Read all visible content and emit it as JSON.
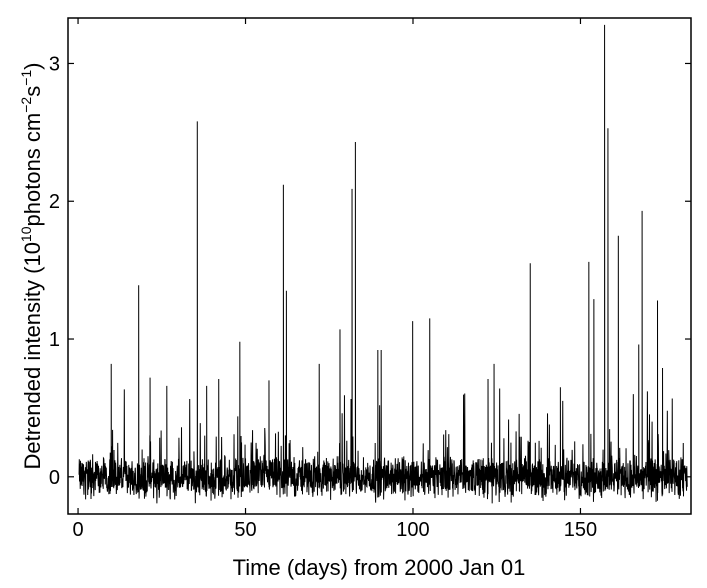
{
  "chart_data": {
    "type": "line",
    "title": "",
    "xlabel": "Time (days) from 2000 Jan 01",
    "ylabel": {
      "main": "Detrended intensity (10",
      "exp1": "10",
      "unit": "photons cm",
      "exp2": "−2",
      "s": "s",
      "exp3": "−1",
      "close": ")"
    },
    "xlim": [
      -3,
      183
    ],
    "ylim": [
      -0.27,
      3.33
    ],
    "xticks": [
      0,
      50,
      100,
      150
    ],
    "yticks": [
      0,
      1,
      2,
      3
    ],
    "grid": false,
    "legend": "none",
    "line_color": "#000000",
    "series": [
      {
        "name": "",
        "note": "noisy baseline near zero (about -0.2 to 0.2) with occasional flare spikes",
        "spikes": [
          {
            "x": 9.9,
            "y": 0.82
          },
          {
            "x": 18.1,
            "y": 1.39
          },
          {
            "x": 21.5,
            "y": 0.72
          },
          {
            "x": 26.5,
            "y": 0.66
          },
          {
            "x": 35.6,
            "y": 2.58
          },
          {
            "x": 38.4,
            "y": 0.66
          },
          {
            "x": 42.0,
            "y": 0.71
          },
          {
            "x": 48.3,
            "y": 0.98
          },
          {
            "x": 57.0,
            "y": 0.7
          },
          {
            "x": 61.3,
            "y": 2.12
          },
          {
            "x": 62.2,
            "y": 1.35
          },
          {
            "x": 72.0,
            "y": 0.82
          },
          {
            "x": 78.2,
            "y": 1.07
          },
          {
            "x": 81.8,
            "y": 2.09
          },
          {
            "x": 82.8,
            "y": 2.43
          },
          {
            "x": 89.5,
            "y": 0.92
          },
          {
            "x": 90.5,
            "y": 0.92
          },
          {
            "x": 99.9,
            "y": 1.13
          },
          {
            "x": 105.0,
            "y": 1.15
          },
          {
            "x": 122.4,
            "y": 0.71
          },
          {
            "x": 124.2,
            "y": 0.82
          },
          {
            "x": 135.0,
            "y": 1.55
          },
          {
            "x": 144.0,
            "y": 0.65
          },
          {
            "x": 152.5,
            "y": 1.56
          },
          {
            "x": 154.0,
            "y": 1.29
          },
          {
            "x": 157.2,
            "y": 3.28
          },
          {
            "x": 158.2,
            "y": 2.53
          },
          {
            "x": 161.3,
            "y": 1.75
          },
          {
            "x": 167.4,
            "y": 0.96
          },
          {
            "x": 168.4,
            "y": 1.93
          },
          {
            "x": 173.0,
            "y": 1.28
          },
          {
            "x": 174.5,
            "y": 0.79
          }
        ]
      }
    ]
  }
}
